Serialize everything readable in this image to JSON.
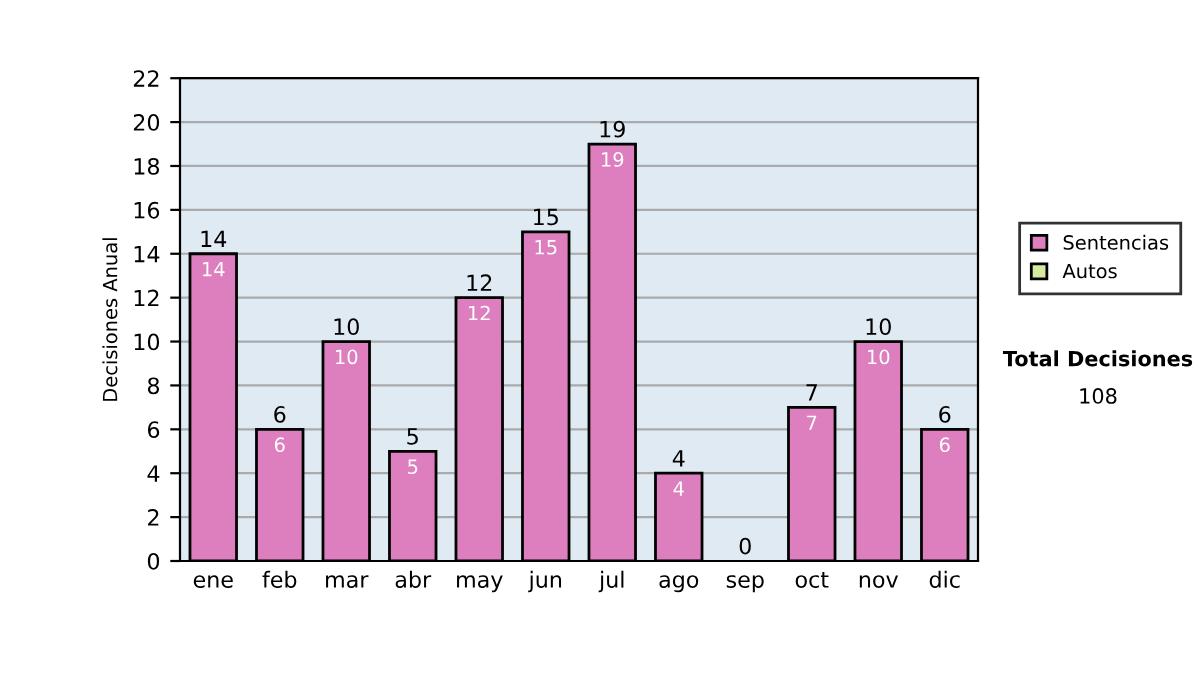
{
  "chart_data": {
    "type": "bar",
    "ylabel": "Decisiones Anual",
    "categories": [
      "ene",
      "feb",
      "mar",
      "abr",
      "may",
      "jun",
      "jul",
      "ago",
      "sep",
      "oct",
      "nov",
      "dic"
    ],
    "stacked": true,
    "series": [
      {
        "name": "Sentencias",
        "color": "#dd7fbf",
        "values": [
          14,
          6,
          10,
          5,
          12,
          15,
          19,
          4,
          0,
          7,
          10,
          6
        ],
        "value_labels": [
          "14",
          "6",
          "10",
          "5",
          "12",
          "15",
          "19",
          "4",
          null,
          "7",
          "10",
          "6"
        ]
      },
      {
        "name": "Autos",
        "color": "#d6eaa0",
        "values": [
          0,
          0,
          0,
          0,
          0,
          0,
          0,
          0,
          0,
          0,
          0,
          0
        ]
      }
    ],
    "totals": [
      "14",
      "6",
      "10",
      "5",
      "12",
      "15",
      "19",
      "4",
      "0",
      "7",
      "10",
      "6"
    ],
    "ylim": [
      0,
      22
    ],
    "yticks": [
      0,
      2,
      4,
      6,
      8,
      10,
      12,
      14,
      16,
      18,
      20,
      22
    ],
    "grid": "y",
    "legend": "right",
    "annotations": [
      "Total Decisiones",
      "108"
    ]
  }
}
